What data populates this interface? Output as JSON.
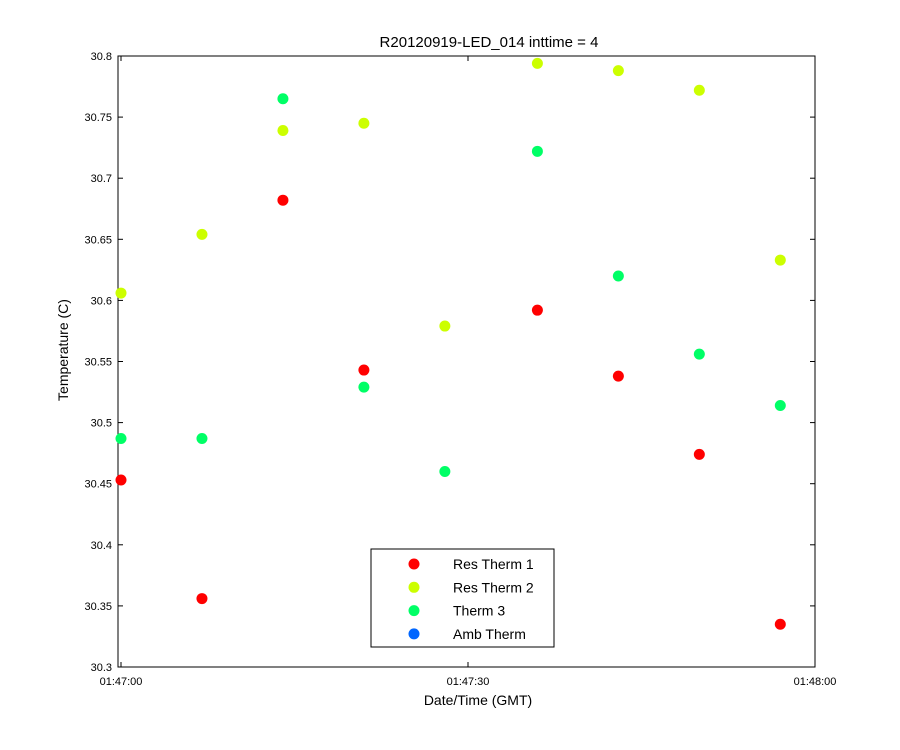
{
  "chart_data": {
    "type": "scatter",
    "title": "R20120919-LED_014 inttime = 4",
    "xlabel": "Date/Time (GMT)",
    "ylabel": "Temperature (C)",
    "xlim": [
      "01:47:00",
      "01:48:00"
    ],
    "ylim": [
      30.3,
      30.8
    ],
    "x_ticks": [
      "01:47:00",
      "01:47:30",
      "01:48:00"
    ],
    "y_ticks": [
      "30.3",
      "30.35",
      "30.4",
      "30.45",
      "30.5",
      "30.55",
      "30.6",
      "30.65",
      "30.7",
      "30.75",
      "30.8"
    ],
    "grid": false,
    "legend_position": "bottom-center",
    "series": [
      {
        "name": "Res Therm 1",
        "color": "#ff0000",
        "points": [
          {
            "x": "01:47:00",
            "y": 30.453
          },
          {
            "x": "01:47:07",
            "y": 30.356
          },
          {
            "x": "01:47:14",
            "y": 30.682
          },
          {
            "x": "01:47:21",
            "y": 30.543
          },
          {
            "x": "01:47:36",
            "y": 30.592
          },
          {
            "x": "01:47:43",
            "y": 30.538
          },
          {
            "x": "01:47:50",
            "y": 30.474
          },
          {
            "x": "01:47:57",
            "y": 30.335
          }
        ]
      },
      {
        "name": "Res Therm 2",
        "color": "#ccff00",
        "points": [
          {
            "x": "01:47:00",
            "y": 30.606
          },
          {
            "x": "01:47:07",
            "y": 30.654
          },
          {
            "x": "01:47:14",
            "y": 30.739
          },
          {
            "x": "01:47:21",
            "y": 30.745
          },
          {
            "x": "01:47:28",
            "y": 30.579
          },
          {
            "x": "01:47:36",
            "y": 30.794
          },
          {
            "x": "01:47:43",
            "y": 30.788
          },
          {
            "x": "01:47:50",
            "y": 30.772
          },
          {
            "x": "01:47:57",
            "y": 30.633
          }
        ]
      },
      {
        "name": "Therm 3",
        "color": "#00ff66",
        "points": [
          {
            "x": "01:47:00",
            "y": 30.487
          },
          {
            "x": "01:47:07",
            "y": 30.487
          },
          {
            "x": "01:47:14",
            "y": 30.765
          },
          {
            "x": "01:47:21",
            "y": 30.529
          },
          {
            "x": "01:47:28",
            "y": 30.46
          },
          {
            "x": "01:47:36",
            "y": 30.722
          },
          {
            "x": "01:47:43",
            "y": 30.62
          },
          {
            "x": "01:47:50",
            "y": 30.556
          },
          {
            "x": "01:47:57",
            "y": 30.514
          }
        ]
      },
      {
        "name": "Amb Therm",
        "color": "#0066ff",
        "points": []
      }
    ]
  }
}
